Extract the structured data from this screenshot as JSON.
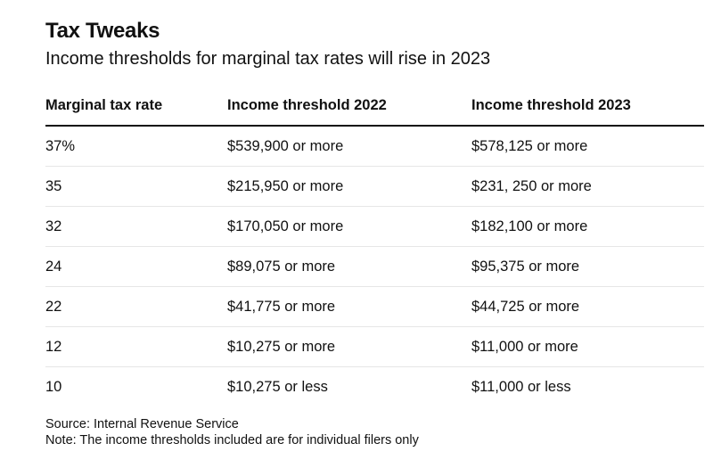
{
  "title": "Tax Tweaks",
  "subtitle": "Income thresholds for marginal tax rates will rise in 2023",
  "table": {
    "headers": [
      "Marginal tax rate",
      "Income threshold 2022",
      "Income threshold 2023"
    ],
    "rows": [
      [
        "37%",
        "$539,900 or more",
        "$578,125 or more"
      ],
      [
        "35",
        "$215,950 or more",
        "$231, 250 or more"
      ],
      [
        "32",
        "$170,050 or more",
        "$182,100 or more"
      ],
      [
        "24",
        "$89,075 or more",
        "$95,375 or more"
      ],
      [
        "22",
        "$41,775 or more",
        "$44,725 or more"
      ],
      [
        "12",
        "$10,275 or more",
        "$11,000 or more"
      ],
      [
        "10",
        "$10,275 or less",
        "$11,000 or less"
      ]
    ]
  },
  "source": "Source: Internal Revenue Service",
  "note": "Note: The income thresholds included are for individual filers only"
}
